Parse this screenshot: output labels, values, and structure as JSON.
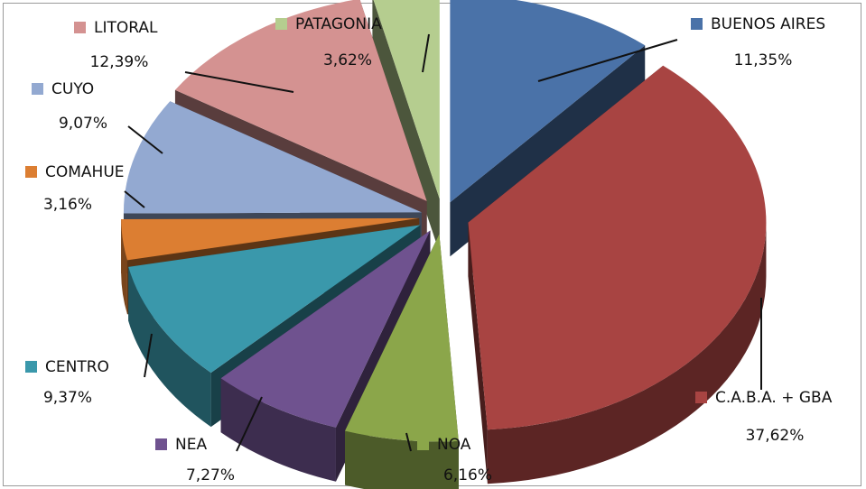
{
  "chart_data": {
    "type": "pie",
    "title": "",
    "categories": [
      "BUENOS AIRES",
      "C.A.B.A. + GBA",
      "NOA",
      "NEA",
      "CENTRO",
      "COMAHUE",
      "CUYO",
      "LITORAL",
      "PATAGONIA"
    ],
    "values": [
      11.35,
      37.62,
      6.16,
      7.27,
      9.37,
      3.16,
      9.07,
      12.39,
      3.62
    ],
    "value_labels": [
      "11,35%",
      "37,62%",
      "6,16%",
      "7,27%",
      "9,37%",
      "3,16%",
      "9,07%",
      "12,39%",
      "3,62%"
    ],
    "colors": [
      "#4a72a8",
      "#a84442",
      "#8ba64a",
      "#6f528f",
      "#3a98ab",
      "#dc7e32",
      "#93a9d1",
      "#d49291",
      "#b5cd8f"
    ],
    "legend": "labels beside slices",
    "exploded": true,
    "three_d": true
  }
}
